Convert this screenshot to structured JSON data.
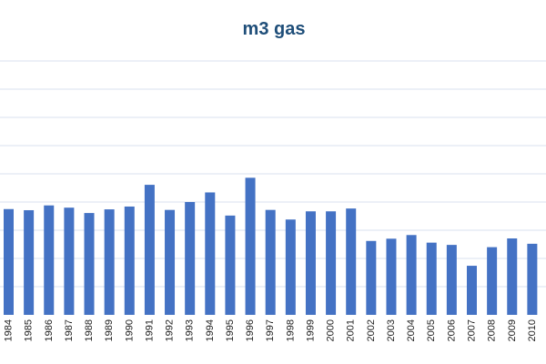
{
  "chart_data": {
    "type": "bar",
    "title": "m3 gas",
    "xlabel": "",
    "ylabel": "",
    "categories": [
      "1984",
      "1985",
      "1986",
      "1987",
      "1988",
      "1989",
      "1990",
      "1991",
      "1992",
      "1993",
      "1994",
      "1995",
      "1996",
      "1997",
      "1998",
      "1999",
      "2000",
      "2001",
      "2002",
      "2003",
      "2004",
      "2005",
      "2006",
      "2007",
      "2008",
      "2009",
      "2010"
    ],
    "values": [
      3.75,
      3.71,
      3.88,
      3.8,
      3.61,
      3.74,
      3.84,
      4.61,
      3.72,
      4.0,
      4.34,
      3.52,
      4.86,
      3.72,
      3.38,
      3.67,
      3.67,
      3.77,
      2.62,
      2.7,
      2.83,
      2.56,
      2.48,
      1.74,
      2.4,
      2.71,
      2.52
    ],
    "ylim": [
      0,
      11
    ],
    "grid": true,
    "bar_color": "#4472c4"
  }
}
